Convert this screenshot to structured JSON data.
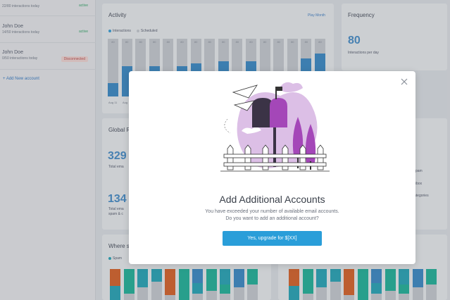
{
  "sidebar": {
    "accounts": [
      {
        "name": "",
        "sub": "22/80 interactions today",
        "status": "active"
      },
      {
        "name": "John Doe",
        "sub": "14/50 interactions today",
        "status": "active"
      },
      {
        "name": "John Doe",
        "sub": "0/50 interactions today",
        "status": "Disconnected"
      }
    ],
    "add_account": "+ Add New account"
  },
  "activity": {
    "title": "Activity",
    "link": "Play Month",
    "legend": [
      "Interactions",
      "Scheduled"
    ],
    "bar_label": "80",
    "bar_fill_fraction": [
      0.27,
      0.6,
      0,
      0.6,
      0,
      0.6,
      0.65,
      0.15,
      0.7,
      0,
      0.7,
      0,
      0,
      0,
      0.75,
      0.85
    ],
    "axis_labels": [
      "Aug 11",
      "Aug"
    ]
  },
  "frequency": {
    "title": "Frequency",
    "value": "80",
    "sub": "Interactions per day"
  },
  "global": {
    "title": "Global R",
    "num1": "329",
    "num1_label": "Total ema",
    "num2": "134",
    "num2_label": "Total ema",
    "num2_label2": "spam & c"
  },
  "right_list": [
    "pam",
    "ibox",
    "ategories"
  ],
  "where": {
    "title": "Where s",
    "legend": "Spam"
  },
  "modal": {
    "title": "Add Additional Accounts",
    "desc_line1": "You have exceeded your number of available email accounts.",
    "desc_line2": "Do you want to add an additional account?",
    "button": "Yes, upgrade for $[XX]"
  },
  "colors": {
    "accent": "#2a9ed9",
    "bar_blue": "#3d8cc6",
    "illus_purple": "#a447b8",
    "illus_pink": "#dcbfe6"
  }
}
